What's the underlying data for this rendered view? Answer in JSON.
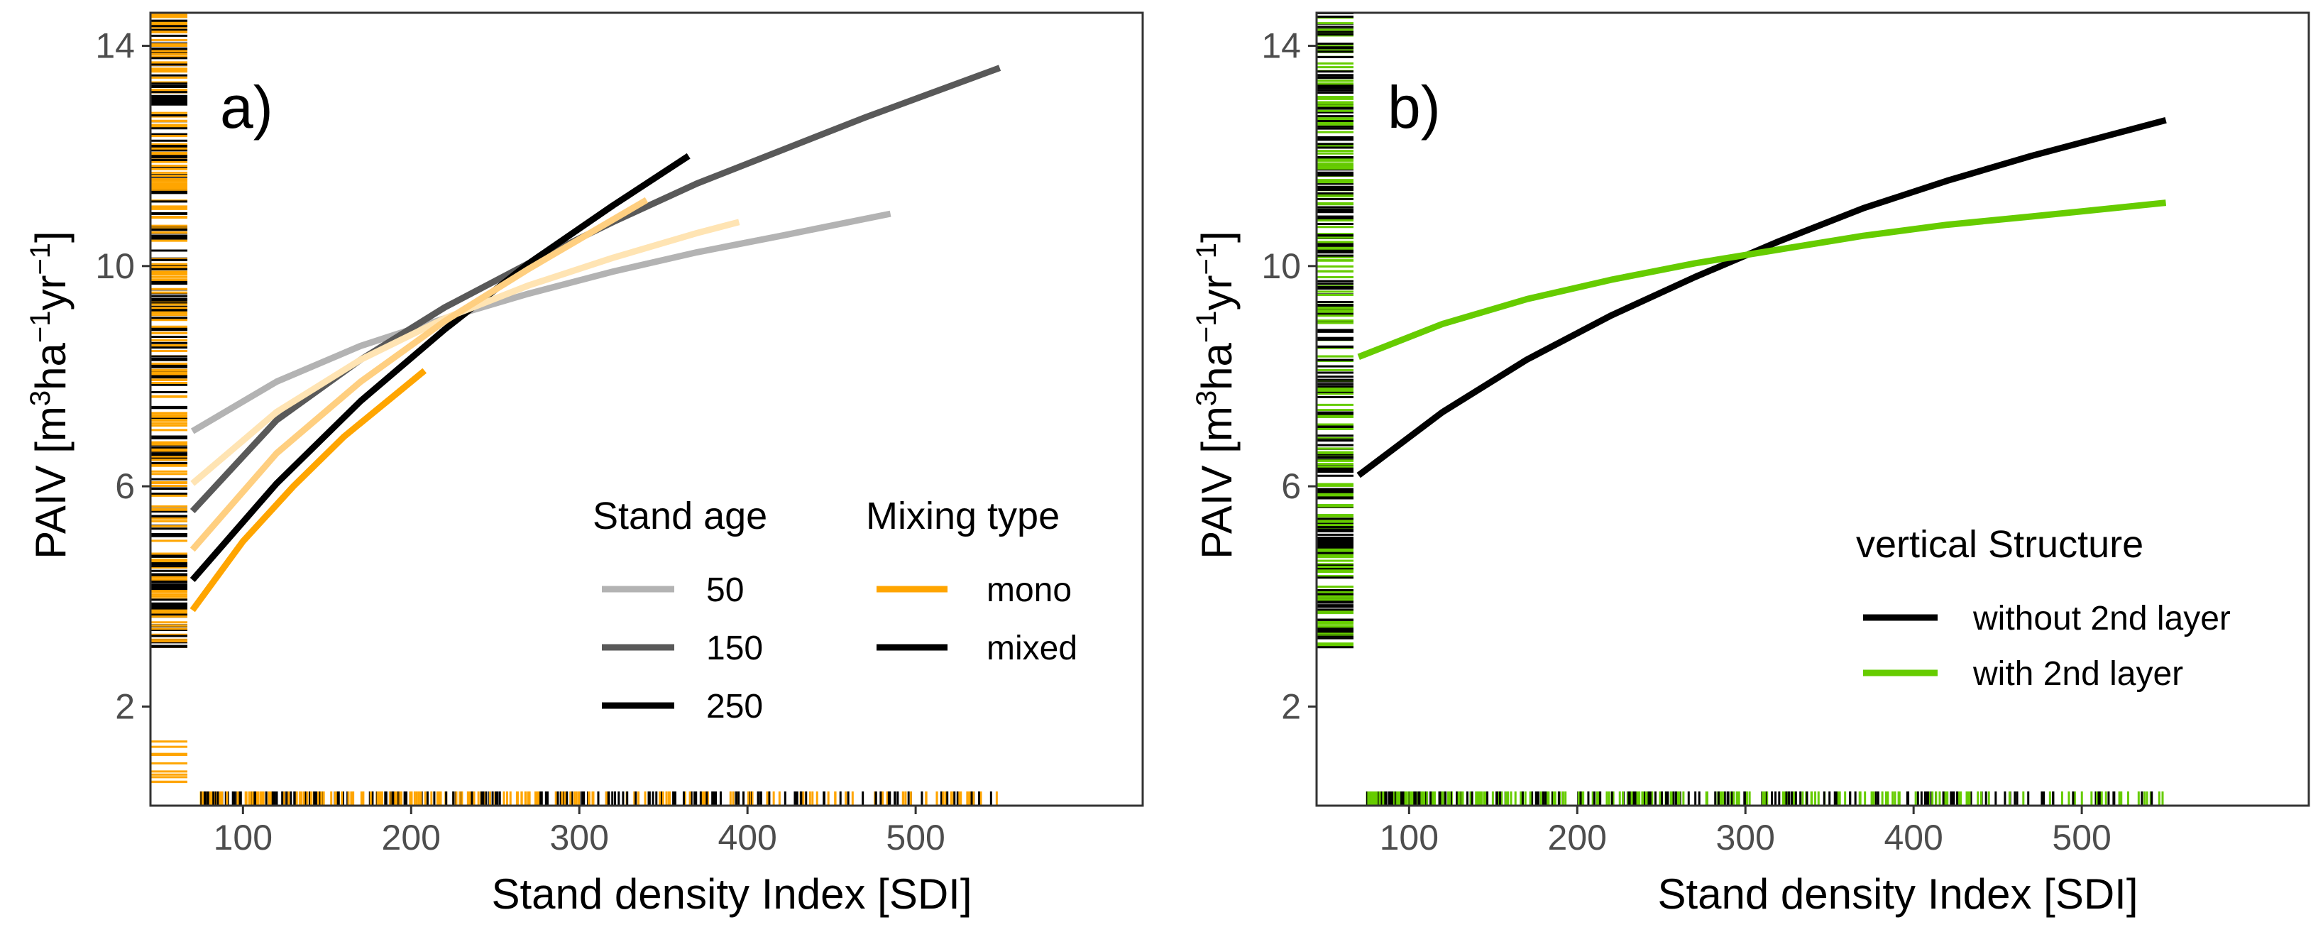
{
  "chart_data": [
    {
      "type": "line",
      "panel_label": "a)",
      "xlabel": "Stand density Index [SDI]",
      "ylabel": "PAIV [m³ha⁻¹yr⁻¹]",
      "ylabel_parts": {
        "base": "PAIV [m",
        "sup1": "3",
        "mid": "ha",
        "sup2": "−1",
        "mid2": "yr",
        "sup3": "−1",
        "end": "]"
      },
      "xlim": [
        45,
        635
      ],
      "ylim": [
        0.2,
        14.6
      ],
      "x_ticks": [
        100,
        200,
        300,
        400,
        500
      ],
      "x_tick_labels": [
        "100",
        "200",
        "300",
        "400",
        "500"
      ],
      "y_ticks": [
        2,
        6,
        10,
        14
      ],
      "y_tick_labels": [
        "2",
        "6",
        "10",
        "14"
      ],
      "legend_groups": [
        {
          "title": "Stand age",
          "entries": [
            {
              "label": "50",
              "color": "#b3b3b3"
            },
            {
              "label": "150",
              "color": "#595959"
            },
            {
              "label": "250",
              "color": "#000000"
            }
          ]
        },
        {
          "title": "Mixing type",
          "entries": [
            {
              "label": "mono",
              "color": "#ffa500"
            },
            {
              "label": "mixed",
              "color": "#000000"
            }
          ]
        }
      ],
      "series": [
        {
          "name": "mixed age 50",
          "color": "#b3b3b3",
          "x": [
            70,
            120,
            170,
            220,
            270,
            320,
            370,
            420,
            485
          ],
          "y": [
            7.0,
            7.9,
            8.55,
            9.05,
            9.5,
            9.9,
            10.25,
            10.55,
            10.95
          ]
        },
        {
          "name": "mixed age 150",
          "color": "#595959",
          "x": [
            70,
            120,
            170,
            220,
            270,
            320,
            370,
            420,
            470,
            550
          ],
          "y": [
            5.55,
            7.2,
            8.3,
            9.25,
            10.05,
            10.8,
            11.5,
            12.1,
            12.7,
            13.6
          ]
        },
        {
          "name": "mixed age 250",
          "color": "#000000",
          "x": [
            70,
            120,
            170,
            220,
            270,
            320,
            365
          ],
          "y": [
            4.3,
            6.05,
            7.55,
            8.85,
            10.05,
            11.1,
            12.0
          ]
        },
        {
          "name": "mono age 50",
          "color": "#ffe4b3",
          "x": [
            70,
            120,
            170,
            220,
            270,
            320,
            370,
            395
          ],
          "y": [
            6.05,
            7.35,
            8.3,
            9.05,
            9.65,
            10.15,
            10.6,
            10.8
          ]
        },
        {
          "name": "mono age 150",
          "color": "#ffcf80",
          "x": [
            70,
            120,
            170,
            220,
            270,
            340
          ],
          "y": [
            4.85,
            6.6,
            7.9,
            9.0,
            9.95,
            11.2
          ]
        },
        {
          "name": "mono age 250",
          "color": "#ffa500",
          "x": [
            70,
            100,
            130,
            160,
            190,
            208
          ],
          "y": [
            3.75,
            5.0,
            6.0,
            6.9,
            7.65,
            8.1
          ]
        }
      ],
      "rug_colors": [
        "#ffa500",
        "#000000"
      ]
    },
    {
      "type": "line",
      "panel_label": "b)",
      "xlabel": "Stand density Index [SDI]",
      "ylabel": "PAIV [m³ha⁻¹yr⁻¹]",
      "ylabel_parts": {
        "base": "PAIV [m",
        "sup1": "3",
        "mid": "ha",
        "sup2": "−1",
        "mid2": "yr",
        "sup3": "−1",
        "end": "]"
      },
      "xlim": [
        45,
        635
      ],
      "ylim": [
        0.2,
        14.6
      ],
      "x_ticks": [
        100,
        200,
        300,
        400,
        500
      ],
      "x_tick_labels": [
        "100",
        "200",
        "300",
        "400",
        "500"
      ],
      "y_ticks": [
        2,
        6,
        10,
        14
      ],
      "y_tick_labels": [
        "2",
        "6",
        "10",
        "14"
      ],
      "legend_groups": [
        {
          "title": "vertical Structure",
          "entries": [
            {
              "label": "without 2nd layer",
              "color": "#000000"
            },
            {
              "label": "with 2nd layer",
              "color": "#66cc00"
            }
          ]
        }
      ],
      "series": [
        {
          "name": "without 2nd layer",
          "color": "#000000",
          "x": [
            70,
            120,
            170,
            220,
            270,
            320,
            370,
            420,
            470,
            550
          ],
          "y": [
            6.2,
            7.35,
            8.3,
            9.1,
            9.8,
            10.45,
            11.05,
            11.55,
            12.0,
            12.65
          ]
        },
        {
          "name": "with 2nd layer",
          "color": "#66cc00",
          "x": [
            70,
            120,
            170,
            220,
            270,
            320,
            370,
            420,
            470,
            550
          ],
          "y": [
            8.35,
            8.95,
            9.4,
            9.75,
            10.05,
            10.3,
            10.55,
            10.75,
            10.9,
            11.15
          ]
        }
      ],
      "rug_colors": [
        "#66cc00",
        "#000000"
      ]
    }
  ]
}
